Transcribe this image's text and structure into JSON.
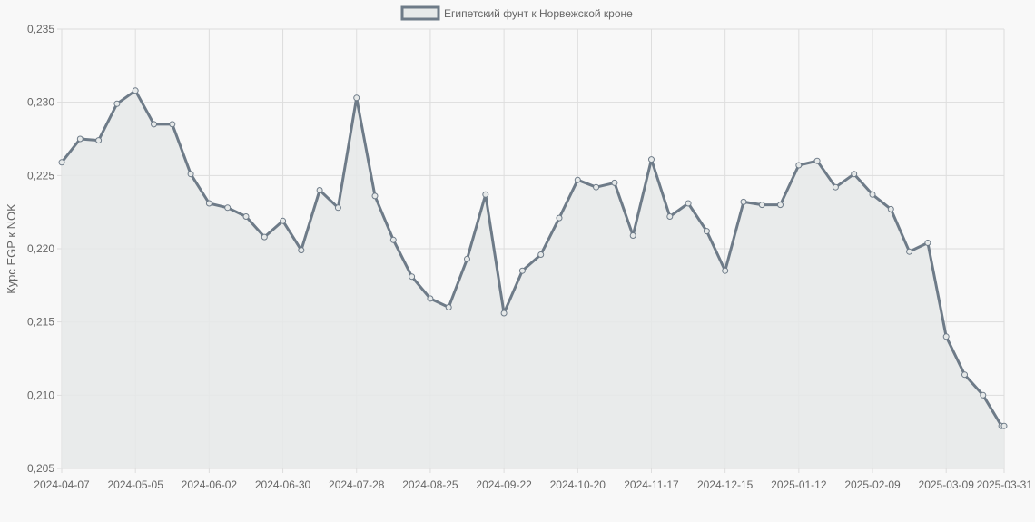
{
  "legend": {
    "label": "Египетский фунт к Норвежской кроне"
  },
  "colors": {
    "line": "#6e7b88",
    "fill": "#e6e9e9",
    "grid": "#dddddd",
    "background": "#f8f8f8",
    "text": "#666666"
  },
  "chart_data": {
    "type": "area",
    "title": "",
    "xlabel": "",
    "ylabel": "Курс EGP к NOK",
    "legend_position": "top-center",
    "grid": true,
    "ylim": [
      0.205,
      0.235
    ],
    "y_ticks": [
      "0,205",
      "0,210",
      "0,215",
      "0,220",
      "0,225",
      "0,230",
      "0,235"
    ],
    "x_ticks": [
      "2024-04-07",
      "2024-05-05",
      "2024-06-02",
      "2024-06-30",
      "2024-07-28",
      "2024-08-25",
      "2024-09-22",
      "2024-10-20",
      "2024-11-17",
      "2024-12-15",
      "2025-01-12",
      "2025-02-09",
      "2025-03-09",
      "2025-03-31"
    ],
    "x": [
      "2024-04-07",
      "2024-04-14",
      "2024-04-21",
      "2024-04-28",
      "2024-05-05",
      "2024-05-12",
      "2024-05-19",
      "2024-05-26",
      "2024-06-02",
      "2024-06-09",
      "2024-06-16",
      "2024-06-23",
      "2024-06-30",
      "2024-07-07",
      "2024-07-14",
      "2024-07-21",
      "2024-07-28",
      "2024-08-04",
      "2024-08-11",
      "2024-08-18",
      "2024-08-25",
      "2024-09-01",
      "2024-09-08",
      "2024-09-15",
      "2024-09-22",
      "2024-09-29",
      "2024-10-06",
      "2024-10-13",
      "2024-10-20",
      "2024-10-27",
      "2024-11-03",
      "2024-11-10",
      "2024-11-17",
      "2024-11-24",
      "2024-12-01",
      "2024-12-08",
      "2024-12-15",
      "2024-12-22",
      "2024-12-29",
      "2025-01-05",
      "2025-01-12",
      "2025-01-19",
      "2025-01-26",
      "2025-02-02",
      "2025-02-09",
      "2025-02-16",
      "2025-02-23",
      "2025-03-02",
      "2025-03-09",
      "2025-03-16",
      "2025-03-23",
      "2025-03-30",
      "2025-03-31"
    ],
    "series": [
      {
        "name": "Египетский фунт к Норвежской кроне",
        "values": [
          0.2259,
          0.2275,
          0.2274,
          0.2299,
          0.2308,
          0.2285,
          0.2285,
          0.2251,
          0.2231,
          0.2228,
          0.2222,
          0.2208,
          0.2219,
          0.2199,
          0.224,
          0.2228,
          0.2303,
          0.2236,
          0.2206,
          0.2181,
          0.2166,
          0.216,
          0.2193,
          0.2237,
          0.2156,
          0.2185,
          0.2196,
          0.2221,
          0.2247,
          0.2242,
          0.2245,
          0.2209,
          0.2261,
          0.2222,
          0.2231,
          0.2212,
          0.2185,
          0.2232,
          0.223,
          0.223,
          0.2257,
          0.226,
          0.2242,
          0.2251,
          0.2237,
          0.2227,
          0.2198,
          0.2204,
          0.214,
          0.2114,
          0.21,
          0.2079,
          0.2079
        ]
      }
    ]
  }
}
